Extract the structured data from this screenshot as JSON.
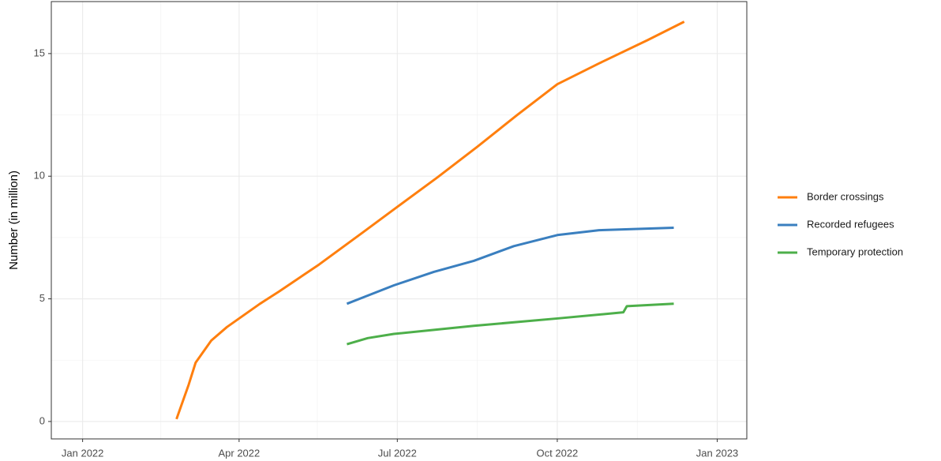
{
  "chart_data": {
    "type": "line",
    "y_label": "Number (in million)",
    "ylim": [
      -0.71,
      17.12
    ],
    "yticks": [
      0,
      5,
      10,
      15
    ],
    "yticks_minor": [
      2.5,
      7.5,
      12.5
    ],
    "xlim": [
      "2021-12-14",
      "2023-01-18"
    ],
    "xticks": [
      {
        "value": "2022-01-01",
        "label": "Jan 2022"
      },
      {
        "value": "2022-04-01",
        "label": "Apr 2022"
      },
      {
        "value": "2022-07-01",
        "label": "Jul 2022"
      },
      {
        "value": "2022-10-01",
        "label": "Oct 2022"
      },
      {
        "value": "2023-01-01",
        "label": "Jan 2023"
      }
    ],
    "xticks_minor": [
      "2022-02-15",
      "2022-05-16",
      "2022-08-16",
      "2022-11-16"
    ],
    "grid": true,
    "legend": "right",
    "series": [
      {
        "name": "Border crossings",
        "color": "#ff7f0e",
        "x": [
          "2022-02-24",
          "2022-03-03",
          "2022-03-07",
          "2022-03-16",
          "2022-03-25",
          "2022-04-01",
          "2022-04-13",
          "2022-04-24",
          "2022-05-17",
          "2022-06-11",
          "2022-07-01",
          "2022-07-24",
          "2022-08-16",
          "2022-09-08",
          "2022-10-01",
          "2022-10-25",
          "2022-11-22",
          "2022-12-13"
        ],
        "values": [
          0.1,
          1.5,
          2.4,
          3.3,
          3.85,
          4.2,
          4.8,
          5.3,
          6.4,
          7.7,
          8.75,
          9.95,
          11.2,
          12.5,
          13.75,
          14.6,
          15.55,
          16.3
        ]
      },
      {
        "name": "Recorded refugees",
        "color": "#3a7fbf",
        "x": [
          "2022-06-02",
          "2022-06-29",
          "2022-07-22",
          "2022-08-14",
          "2022-09-06",
          "2022-10-01",
          "2022-10-25",
          "2022-12-07"
        ],
        "values": [
          4.8,
          5.55,
          6.1,
          6.55,
          7.15,
          7.6,
          7.8,
          7.9
        ]
      },
      {
        "name": "Temporary protection",
        "color": "#4daf4a",
        "x": [
          "2022-06-02",
          "2022-06-14",
          "2022-06-29",
          "2022-08-14",
          "2022-10-01",
          "2022-11-08",
          "2022-11-10",
          "2022-12-07"
        ],
        "values": [
          3.15,
          3.4,
          3.57,
          3.9,
          4.2,
          4.45,
          4.7,
          4.8
        ]
      }
    ]
  }
}
